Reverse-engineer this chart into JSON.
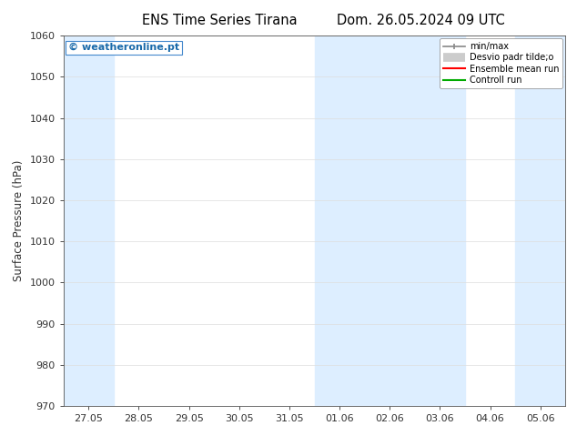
{
  "title_left": "ENS Time Series Tirana",
  "title_right": "Dom. 26.05.2024 09 UTC",
  "ylabel": "Surface Pressure (hPa)",
  "ylim": [
    970,
    1060
  ],
  "yticks": [
    970,
    980,
    990,
    1000,
    1010,
    1020,
    1030,
    1040,
    1050,
    1060
  ],
  "x_tick_labels": [
    "27.05",
    "28.05",
    "29.05",
    "30.05",
    "31.05",
    "01.06",
    "02.06",
    "03.06",
    "04.06",
    "05.06"
  ],
  "x_tick_positions": [
    0,
    1,
    2,
    3,
    4,
    5,
    6,
    7,
    8,
    9
  ],
  "xlim": [
    -0.5,
    9.5
  ],
  "shaded_bands": [
    {
      "x_start": -0.5,
      "x_end": 0.5,
      "color": "#ddeeff"
    },
    {
      "x_start": 4.5,
      "x_end": 7.5,
      "color": "#ddeeff"
    },
    {
      "x_start": 8.5,
      "x_end": 9.5,
      "color": "#ddeeff"
    }
  ],
  "copyright_text": "© weatheronline.pt",
  "copyright_color": "#1a6aaa",
  "legend_entries": [
    {
      "label": "min/max",
      "color": "#888888",
      "lw": 1.2
    },
    {
      "label": "Desvio padr tilde;o",
      "color": "#cccccc",
      "lw": 7
    },
    {
      "label": "Ensemble mean run",
      "color": "#ff0000",
      "lw": 1.5
    },
    {
      "label": "Controll run",
      "color": "#00aa00",
      "lw": 1.5
    }
  ],
  "bg_color": "#ffffff",
  "grid_color": "#dddddd",
  "title_fontsize": 10.5,
  "ylabel_fontsize": 8.5,
  "tick_fontsize": 8,
  "copyright_fontsize": 8
}
